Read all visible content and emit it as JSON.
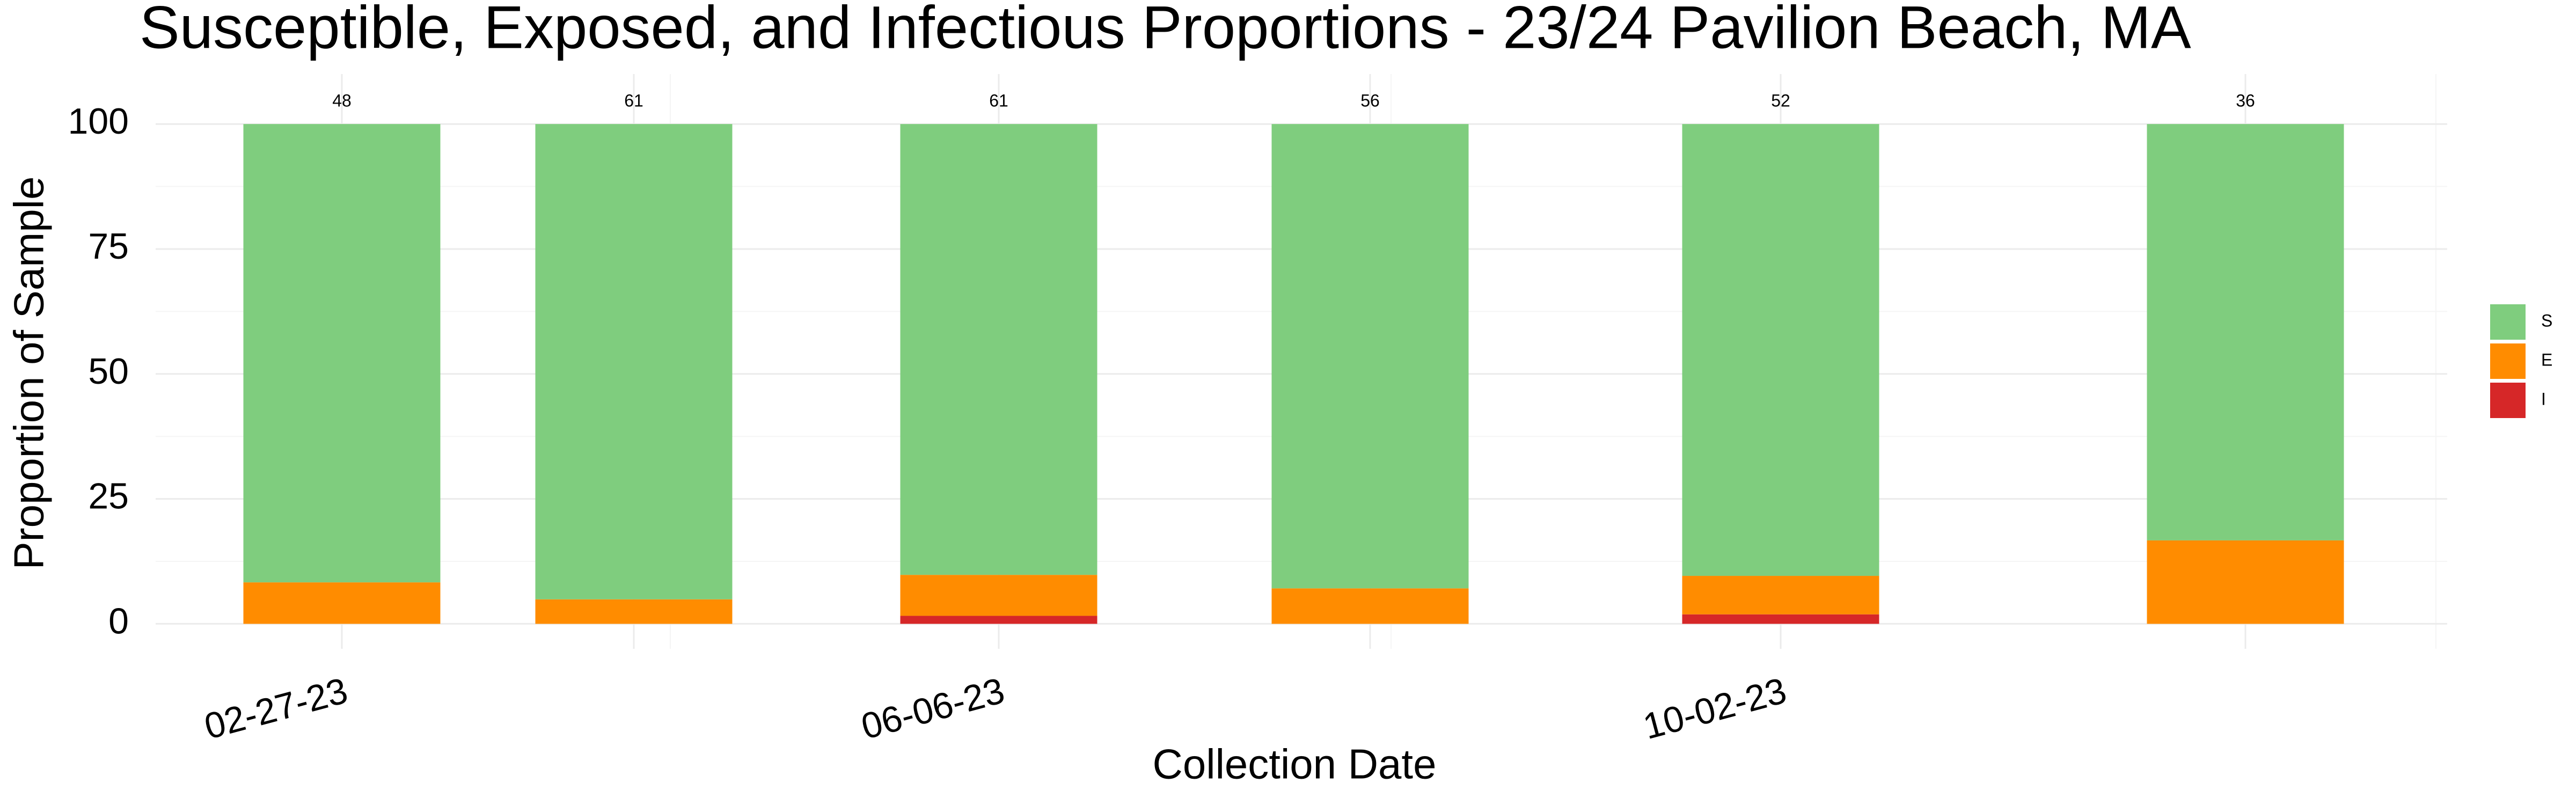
{
  "chart_data": {
    "type": "stacked_bar",
    "title": "Susceptible, Exposed, and Infectious Proportions - 23/24 Pavilion Beach, MA",
    "x_label": "Collection Date",
    "y_label": "Proportion of Sample",
    "categories": [
      "02-27-23",
      null,
      "06-06-23",
      null,
      "10-02-23",
      null
    ],
    "series": [
      {
        "name": "S",
        "color": "#7fcd7e",
        "values": [
          91.7,
          95.1,
          90.2,
          92.9,
          90.4,
          83.3
        ]
      },
      {
        "name": "E",
        "color": "#ff8c00",
        "values": [
          8.3,
          4.9,
          8.2,
          7.1,
          7.7,
          16.7
        ]
      },
      {
        "name": "I",
        "color": "#d62728",
        "values": [
          0,
          0,
          1.6,
          0,
          1.9,
          0
        ]
      }
    ],
    "counts": [
      48,
      61,
      61,
      56,
      52,
      36
    ],
    "ylim": [
      -5,
      110
    ],
    "yticks": [
      0,
      25,
      50,
      75,
      100
    ],
    "grid": true,
    "legend": "right"
  }
}
